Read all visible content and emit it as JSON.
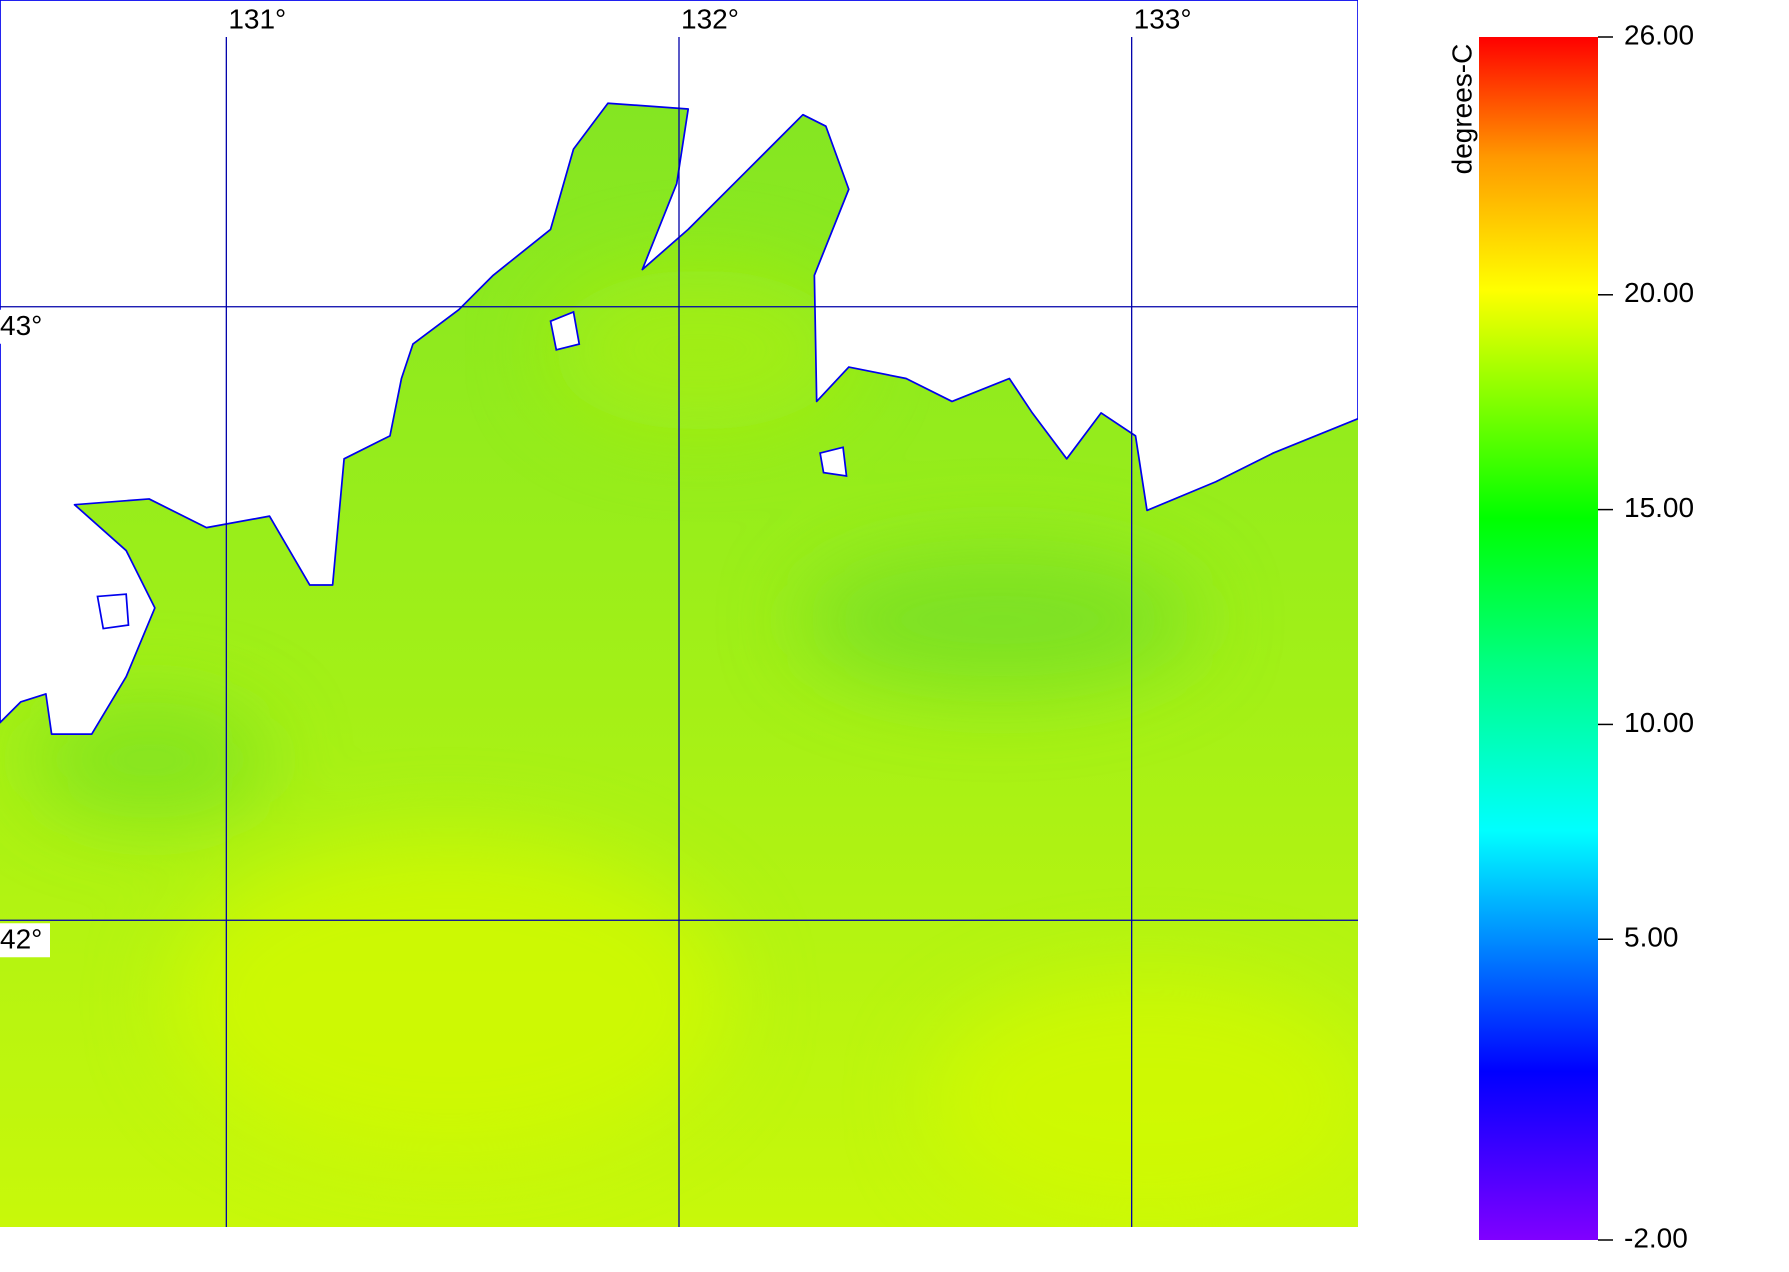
{
  "map": {
    "lon_lim": [
      130.5,
      133.5
    ],
    "lat_lim": [
      41.5,
      43.5
    ],
    "lon_ticks": [
      {
        "value": 131,
        "label": "131°"
      },
      {
        "value": 132,
        "label": "132°"
      },
      {
        "value": 133,
        "label": "133°"
      }
    ],
    "lat_ticks": [
      {
        "value": 43,
        "label": "43°"
      },
      {
        "value": 42,
        "label": "42°"
      }
    ]
  },
  "colorbar": {
    "label": "degrees-C",
    "lim": [
      -2,
      26
    ],
    "ticks": [
      {
        "value": 26,
        "label": "26.00"
      },
      {
        "value": 20,
        "label": "20.00"
      },
      {
        "value": 15,
        "label": "15.00"
      },
      {
        "value": 10,
        "label": "10.00"
      },
      {
        "value": 5,
        "label": "5.00"
      },
      {
        "value": -2,
        "label": "-2.00"
      }
    ]
  }
}
